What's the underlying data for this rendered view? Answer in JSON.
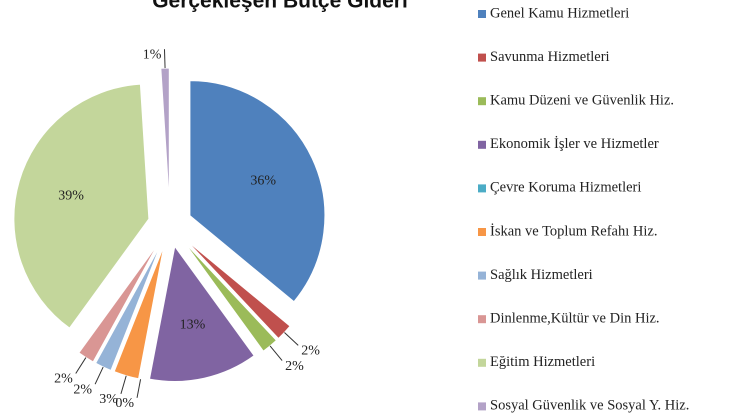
{
  "chart_data": {
    "type": "pie",
    "title": "Gerçekleşen Bütçe Gideri",
    "categories": [
      "Genel Kamu Hizmetleri",
      "Savunma Hizmetleri",
      "Kamu Düzeni ve Güvenlik Hiz.",
      "Ekonomik İşler ve Hizmetler",
      "Çevre Koruma Hizmetleri",
      "İskan ve Toplum Refahı Hiz.",
      "Sağlık Hizmetleri",
      "Dinlenme,Kültür ve Din Hiz.",
      "Eğitim Hizmetleri",
      "Sosyal Güvenlik ve Sosyal Y. Hiz."
    ],
    "values": [
      36,
      2,
      2,
      13,
      0,
      3,
      2,
      2,
      39,
      1
    ],
    "value_labels": [
      "36%",
      "2%",
      "2%",
      "13%",
      "0%",
      "3%",
      "2%",
      "2%",
      "39%",
      "1%"
    ],
    "colors": [
      "#4f81bd",
      "#c0504d",
      "#9bbb59",
      "#8064a2",
      "#4bacc6",
      "#f79646",
      "#95b3d7",
      "#d99694",
      "#c3d69b",
      "#b3a2c7"
    ],
    "legend": "right"
  }
}
